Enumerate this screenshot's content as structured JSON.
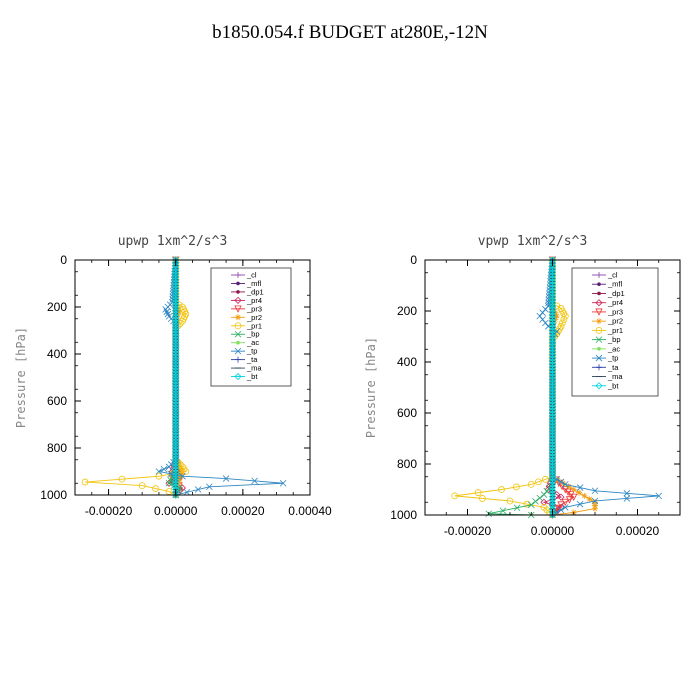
{
  "title": "b1850.054.f  BUDGET at280E,-12N",
  "chart_data": [
    {
      "type": "line",
      "title": "upwp   1xm^2/s^3",
      "xlabel": "",
      "ylabel": "Pressure [hPa]",
      "xlim": [
        -0.0003,
        0.0004
      ],
      "ylim": [
        1000,
        0
      ],
      "xticks": [
        -0.0002,
        0.0,
        0.0002,
        0.0004
      ],
      "xtick_labels": [
        "-0.00020",
        "0.00000",
        "0.00020",
        "0.00040"
      ],
      "yticks": [
        0,
        200,
        400,
        600,
        800,
        1000
      ],
      "ytick_labels": [
        "0",
        "200",
        "400",
        "600",
        "800",
        "1000"
      ],
      "legend_position": "top-right",
      "series": [
        {
          "name": "_cl",
          "color": "#8e44ad",
          "marker": "+",
          "points": [
            [
              0.0,
              0
            ],
            [
              0.0,
              500
            ],
            [
              0.0,
              1000
            ]
          ]
        },
        {
          "name": "_mfl",
          "color": "#5b1f7a",
          "marker": "dot",
          "points": [
            [
              0.0,
              0
            ],
            [
              0.0,
              500
            ],
            [
              0.0,
              1000
            ]
          ]
        },
        {
          "name": "_dp1",
          "color": "#8b1a4a",
          "marker": "dot",
          "points": [
            [
              0.0,
              0
            ],
            [
              0.0,
              500
            ],
            [
              0.0,
              1000
            ]
          ]
        },
        {
          "name": "_pr4",
          "color": "#cc2255",
          "marker": "diamond",
          "points": [
            [
              0.0,
              0
            ],
            [
              0.0,
              850
            ],
            [
              -1e-05,
              900
            ],
            [
              1e-05,
              930
            ],
            [
              -2e-05,
              950
            ],
            [
              2e-05,
              970
            ],
            [
              0.0,
              1000
            ]
          ]
        },
        {
          "name": "_pr3",
          "color": "#ee3333",
          "marker": "triangle",
          "points": [
            [
              0.0,
              0
            ],
            [
              0.0,
              850
            ],
            [
              1e-05,
              900
            ],
            [
              -1e-05,
              930
            ],
            [
              1e-05,
              960
            ],
            [
              0.0,
              1000
            ]
          ]
        },
        {
          "name": "_pr2",
          "color": "#f39c12",
          "marker": "star",
          "points": [
            [
              0.0,
              0
            ],
            [
              0.0,
              180
            ],
            [
              1e-05,
              220
            ],
            [
              0.0,
              260
            ],
            [
              0.0,
              850
            ],
            [
              2e-05,
              900
            ],
            [
              1e-05,
              940
            ],
            [
              0.0,
              1000
            ]
          ]
        },
        {
          "name": "_pr1",
          "color": "#f1c40f",
          "marker": "circle",
          "points": [
            [
              0.0,
              0
            ],
            [
              0.0,
              180
            ],
            [
              2e-05,
              200
            ],
            [
              3e-05,
              230
            ],
            [
              2e-05,
              260
            ],
            [
              0.0,
              290
            ],
            [
              0.0,
              850
            ],
            [
              2e-05,
              880
            ],
            [
              3e-05,
              900
            ],
            [
              -5e-05,
              920
            ],
            [
              -0.00027,
              945
            ],
            [
              -0.0001,
              960
            ],
            [
              -2e-05,
              985
            ],
            [
              0.0,
              1000
            ]
          ]
        },
        {
          "name": "_bp",
          "color": "#27ae60",
          "marker": "x",
          "points": [
            [
              0.0,
              0
            ],
            [
              0.0,
              900
            ],
            [
              -2e-05,
              950
            ],
            [
              1e-05,
              970
            ],
            [
              0.0,
              1000
            ]
          ]
        },
        {
          "name": "_ac",
          "color": "#7fe05a",
          "marker": "dot",
          "points": [
            [
              0.0,
              0
            ],
            [
              0.0,
              1000
            ]
          ]
        },
        {
          "name": "_tp",
          "color": "#2e86c1",
          "marker": "x",
          "points": [
            [
              0.0,
              0
            ],
            [
              -1e-05,
              180
            ],
            [
              -3e-05,
              210
            ],
            [
              -2e-05,
              240
            ],
            [
              0.0,
              270
            ],
            [
              0.0,
              850
            ],
            [
              -2e-05,
              880
            ],
            [
              -5e-05,
              900
            ],
            [
              2e-05,
              920
            ],
            [
              0.00015,
              930
            ],
            [
              0.00032,
              950
            ],
            [
              0.0001,
              965
            ],
            [
              0.0,
              1000
            ]
          ]
        },
        {
          "name": "_ta",
          "color": "#2d3ea8",
          "marker": "+",
          "points": [
            [
              0.0,
              0
            ],
            [
              0.0,
              1000
            ]
          ]
        },
        {
          "name": "_ma",
          "color": "#34495e",
          "marker": "dash",
          "points": [
            [
              0.0,
              0
            ],
            [
              0.0,
              1000
            ]
          ]
        },
        {
          "name": "_bt",
          "color": "#00d5e0",
          "marker": "diamond",
          "points": [
            [
              0.0,
              0
            ],
            [
              0.0,
              1000
            ]
          ]
        }
      ]
    },
    {
      "type": "line",
      "title": "vpwp   1xm^2/s^3",
      "xlabel": "",
      "ylabel": "Pressure [hPa]",
      "xlim": [
        -0.0003,
        0.0003
      ],
      "ylim": [
        1000,
        0
      ],
      "xticks": [
        -0.0002,
        0.0,
        0.0002
      ],
      "xtick_labels": [
        "-0.00020",
        "0.00000",
        "0.00020"
      ],
      "yticks": [
        0,
        200,
        400,
        600,
        800,
        1000
      ],
      "ytick_labels": [
        "0",
        "200",
        "400",
        "600",
        "800",
        "1000"
      ],
      "legend_position": "top-right",
      "series": [
        {
          "name": "_cl",
          "color": "#8e44ad",
          "marker": "+",
          "points": [
            [
              0.0,
              0
            ],
            [
              0.0,
              500
            ],
            [
              0.0,
              1000
            ]
          ]
        },
        {
          "name": "_mfl",
          "color": "#5b1f7a",
          "marker": "dot",
          "points": [
            [
              0.0,
              0
            ],
            [
              0.0,
              500
            ],
            [
              0.0,
              1000
            ]
          ]
        },
        {
          "name": "_dp1",
          "color": "#8b1a4a",
          "marker": "dot",
          "points": [
            [
              0.0,
              0
            ],
            [
              0.0,
              500
            ],
            [
              0.0,
              1000
            ]
          ]
        },
        {
          "name": "_pr4",
          "color": "#cc2255",
          "marker": "diamond",
          "points": [
            [
              0.0,
              0
            ],
            [
              0.0,
              850
            ],
            [
              -1e-05,
              900
            ],
            [
              2e-05,
              930
            ],
            [
              -2e-05,
              950
            ],
            [
              2e-05,
              970
            ],
            [
              0.0,
              1000
            ]
          ]
        },
        {
          "name": "_pr3",
          "color": "#ee3333",
          "marker": "triangle",
          "points": [
            [
              0.0,
              0
            ],
            [
              0.0,
              850
            ],
            [
              3e-05,
              900
            ],
            [
              5e-05,
              930
            ],
            [
              2e-05,
              960
            ],
            [
              0.0,
              1000
            ]
          ]
        },
        {
          "name": "_pr2",
          "color": "#f39c12",
          "marker": "star",
          "points": [
            [
              0.0,
              0
            ],
            [
              0.0,
              180
            ],
            [
              1e-05,
              220
            ],
            [
              0.0,
              260
            ],
            [
              0.0,
              850
            ],
            [
              5e-05,
              900
            ],
            [
              0.0001,
              950
            ],
            [
              0.0001,
              975
            ],
            [
              5e-05,
              990
            ],
            [
              0.0,
              1000
            ]
          ]
        },
        {
          "name": "_pr1",
          "color": "#f1c40f",
          "marker": "circle",
          "points": [
            [
              0.0,
              0
            ],
            [
              0.0,
              170
            ],
            [
              2e-05,
              190
            ],
            [
              3e-05,
              220
            ],
            [
              2e-05,
              260
            ],
            [
              1e-05,
              290
            ],
            [
              0.0,
              310
            ],
            [
              0.0,
              850
            ],
            [
              -5e-05,
              880
            ],
            [
              -0.00012,
              900
            ],
            [
              -0.00023,
              925
            ],
            [
              -0.0001,
              945
            ],
            [
              -2e-05,
              970
            ],
            [
              0.0,
              1000
            ]
          ]
        },
        {
          "name": "_bp",
          "color": "#27ae60",
          "marker": "x",
          "points": [
            [
              0.0,
              0
            ],
            [
              0.0,
              880
            ],
            [
              -2e-05,
              920
            ],
            [
              -5e-05,
              960
            ],
            [
              -0.00015,
              995
            ],
            [
              -5e-05,
              1000
            ]
          ]
        },
        {
          "name": "_ac",
          "color": "#7fe05a",
          "marker": "dot",
          "points": [
            [
              0.0,
              0
            ],
            [
              0.0,
              1000
            ]
          ]
        },
        {
          "name": "_tp",
          "color": "#2e86c1",
          "marker": "x",
          "points": [
            [
              0.0,
              0
            ],
            [
              -1e-05,
              180
            ],
            [
              -3e-05,
              220
            ],
            [
              -1e-05,
              260
            ],
            [
              1e-05,
              280
            ],
            [
              0.0,
              300
            ],
            [
              0.0,
              850
            ],
            [
              3e-05,
              880
            ],
            [
              0.0001,
              905
            ],
            [
              0.00025,
              925
            ],
            [
              0.0001,
              945
            ],
            [
              3e-05,
              970
            ],
            [
              0.0,
              1000
            ]
          ]
        },
        {
          "name": "_ta",
          "color": "#2d3ea8",
          "marker": "+",
          "points": [
            [
              0.0,
              0
            ],
            [
              0.0,
              1000
            ]
          ]
        },
        {
          "name": "_ma",
          "color": "#34495e",
          "marker": "dash",
          "points": [
            [
              0.0,
              0
            ],
            [
              0.0,
              1000
            ]
          ]
        },
        {
          "name": "_bt",
          "color": "#00d5e0",
          "marker": "diamond",
          "points": [
            [
              0.0,
              0
            ],
            [
              0.0,
              1000
            ]
          ]
        }
      ]
    }
  ]
}
